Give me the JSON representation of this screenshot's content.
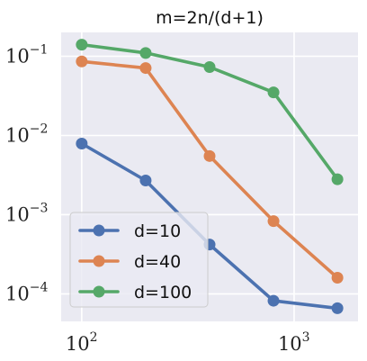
{
  "chart_data": {
    "type": "line",
    "title": "m=2n/(d+1)",
    "xlabel": "",
    "ylabel": "",
    "xscale": "log",
    "yscale": "log",
    "xlim": [
      80,
      2000
    ],
    "ylim": [
      4.5e-05,
      0.2
    ],
    "x": [
      100,
      200,
      400,
      800,
      1600
    ],
    "series": [
      {
        "name": "d=10",
        "color": "#4c72b0",
        "values": [
          0.0079,
          0.0027,
          0.00042,
          8.2e-05,
          6.6e-05
        ]
      },
      {
        "name": "d=40",
        "color": "#dd8452",
        "values": [
          0.086,
          0.071,
          0.0055,
          0.00083,
          0.00016
        ]
      },
      {
        "name": "d=100",
        "color": "#55a868",
        "values": [
          0.14,
          0.11,
          0.073,
          0.035,
          0.0028
        ]
      }
    ],
    "x_ticks": [
      {
        "base": "10",
        "exp": "2",
        "value": 100
      },
      {
        "base": "10",
        "exp": "3",
        "value": 1000
      }
    ],
    "y_ticks": [
      {
        "base": "10",
        "exp": "−1",
        "value": 0.1
      },
      {
        "base": "10",
        "exp": "−2",
        "value": 0.01
      },
      {
        "base": "10",
        "exp": "−3",
        "value": 0.001
      },
      {
        "base": "10",
        "exp": "−4",
        "value": 0.0001
      }
    ],
    "grid": true,
    "legend_position": "lower-left",
    "background_color": "#eaeaf2",
    "grid_color": "#ffffff"
  }
}
